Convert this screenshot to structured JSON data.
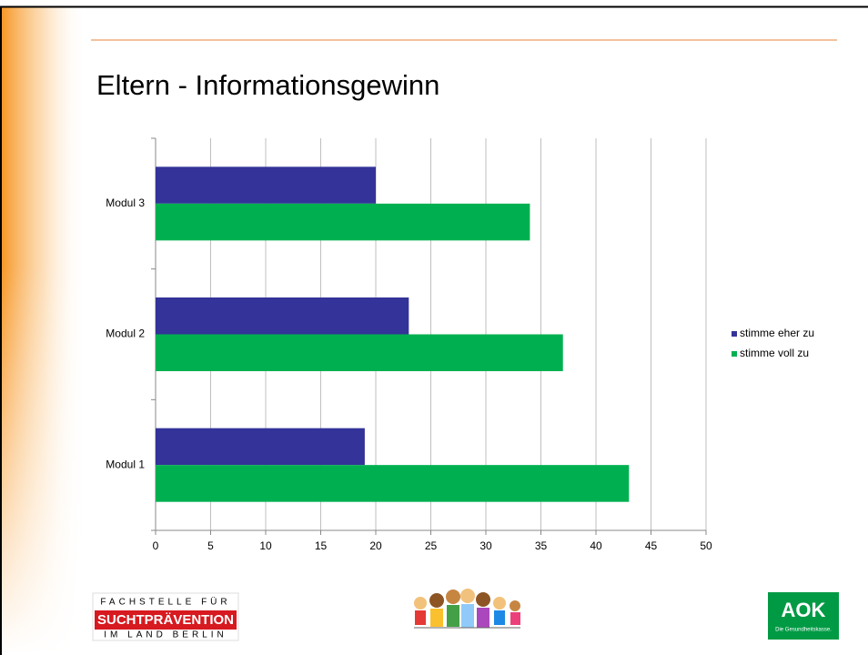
{
  "chart_data": {
    "type": "barh",
    "title": "Eltern - Informationsgewinn",
    "categories": [
      "Modul 1",
      "Modul 2",
      "Modul 3"
    ],
    "series": [
      {
        "name": "stimme eher zu",
        "color": "#333399",
        "values": [
          19,
          23,
          20
        ]
      },
      {
        "name": "stimme voll zu",
        "color": "#00b050",
        "values": [
          43,
          37,
          34
        ]
      }
    ],
    "xlim": [
      0,
      50
    ],
    "xticks": [
      0,
      5,
      10,
      15,
      20,
      25,
      30,
      35,
      40,
      45,
      50
    ],
    "grid": true,
    "legend": "right"
  },
  "logos": {
    "left": [
      "FACHSTELLE FÜR",
      "SUCHTPRÄVENTION",
      "IM LAND BERLIN"
    ],
    "right": [
      "AOK",
      "Die Gesundheitskasse."
    ]
  }
}
